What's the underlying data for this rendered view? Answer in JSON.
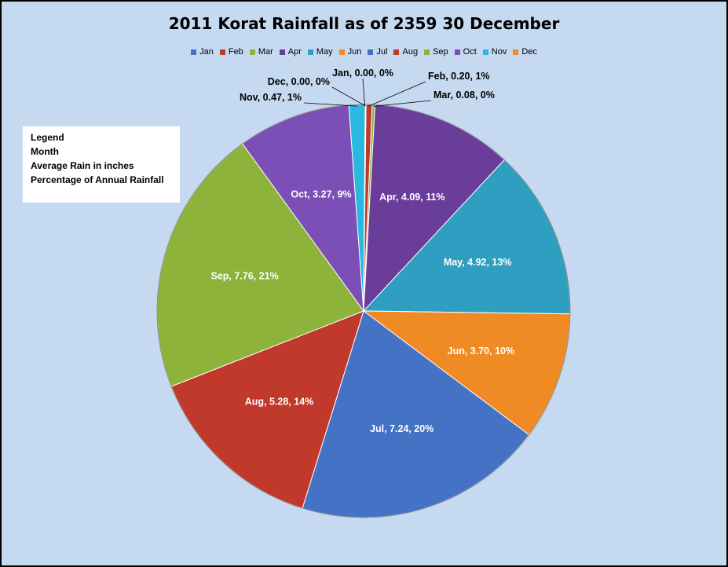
{
  "chart_data": {
    "type": "pie",
    "title": "2011 Korat Rainfall as of 2359 30 December",
    "legend_position": "top",
    "categories": [
      "Jan",
      "Feb",
      "Mar",
      "Apr",
      "May",
      "Jun",
      "Jul",
      "Aug",
      "Sep",
      "Oct",
      "Nov",
      "Dec"
    ],
    "values": [
      0.0,
      0.2,
      0.08,
      4.09,
      4.92,
      3.7,
      7.24,
      5.28,
      7.76,
      3.27,
      0.47,
      0.0
    ],
    "percentages": [
      0,
      1,
      0,
      11,
      13,
      10,
      20,
      14,
      21,
      9,
      1,
      0
    ],
    "slice_labels": [
      "Jan, 0.00, 0%",
      "Feb, 0.20, 1%",
      "Mar, 0.08, 0%",
      "Apr, 4.09, 11%",
      "May, 4.92, 13%",
      "Jun, 3.70, 10%",
      "Jul, 7.24, 20%",
      "Aug, 5.28, 14%",
      "Sep, 7.76, 21%",
      "Oct, 3.27, 9%",
      "Nov, 0.47, 1%",
      "Dec, 0.00, 0%"
    ],
    "colors": [
      "#4472c4",
      "#c0392b",
      "#8db33a",
      "#6a3d9a",
      "#2e9fc0",
      "#f08a24",
      "#4472c4",
      "#c0392b",
      "#8db33a",
      "#7b4fb5",
      "#29b8e0",
      "#f08a24"
    ],
    "legend_note": [
      "Legend",
      "Month",
      "Average Rain in inches",
      "Percentage of Annual Rainfall"
    ]
  }
}
